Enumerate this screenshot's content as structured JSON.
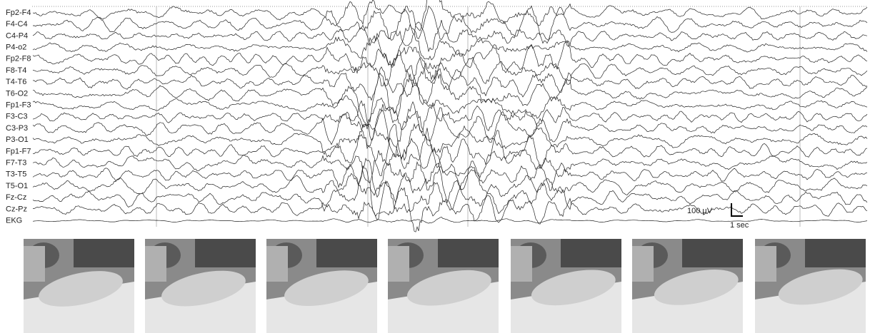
{
  "figure": {
    "channels": [
      "Fp2-F4",
      "F4-C4",
      "C4-P4",
      "P4-o2",
      "Fp2-F8",
      "F8-T4",
      "T4-T6",
      "T6-O2",
      "Fp1-F3",
      "F3-C3",
      "C3-P3",
      "P3-O1",
      "Fp1-F7",
      "F7-T3",
      "T3-T5",
      "T5-O1",
      "Fz-Cz",
      "Cz-Pz",
      "EKG"
    ],
    "scale_bar": {
      "amplitude": "100 µV",
      "time": "1 sec"
    }
  }
}
